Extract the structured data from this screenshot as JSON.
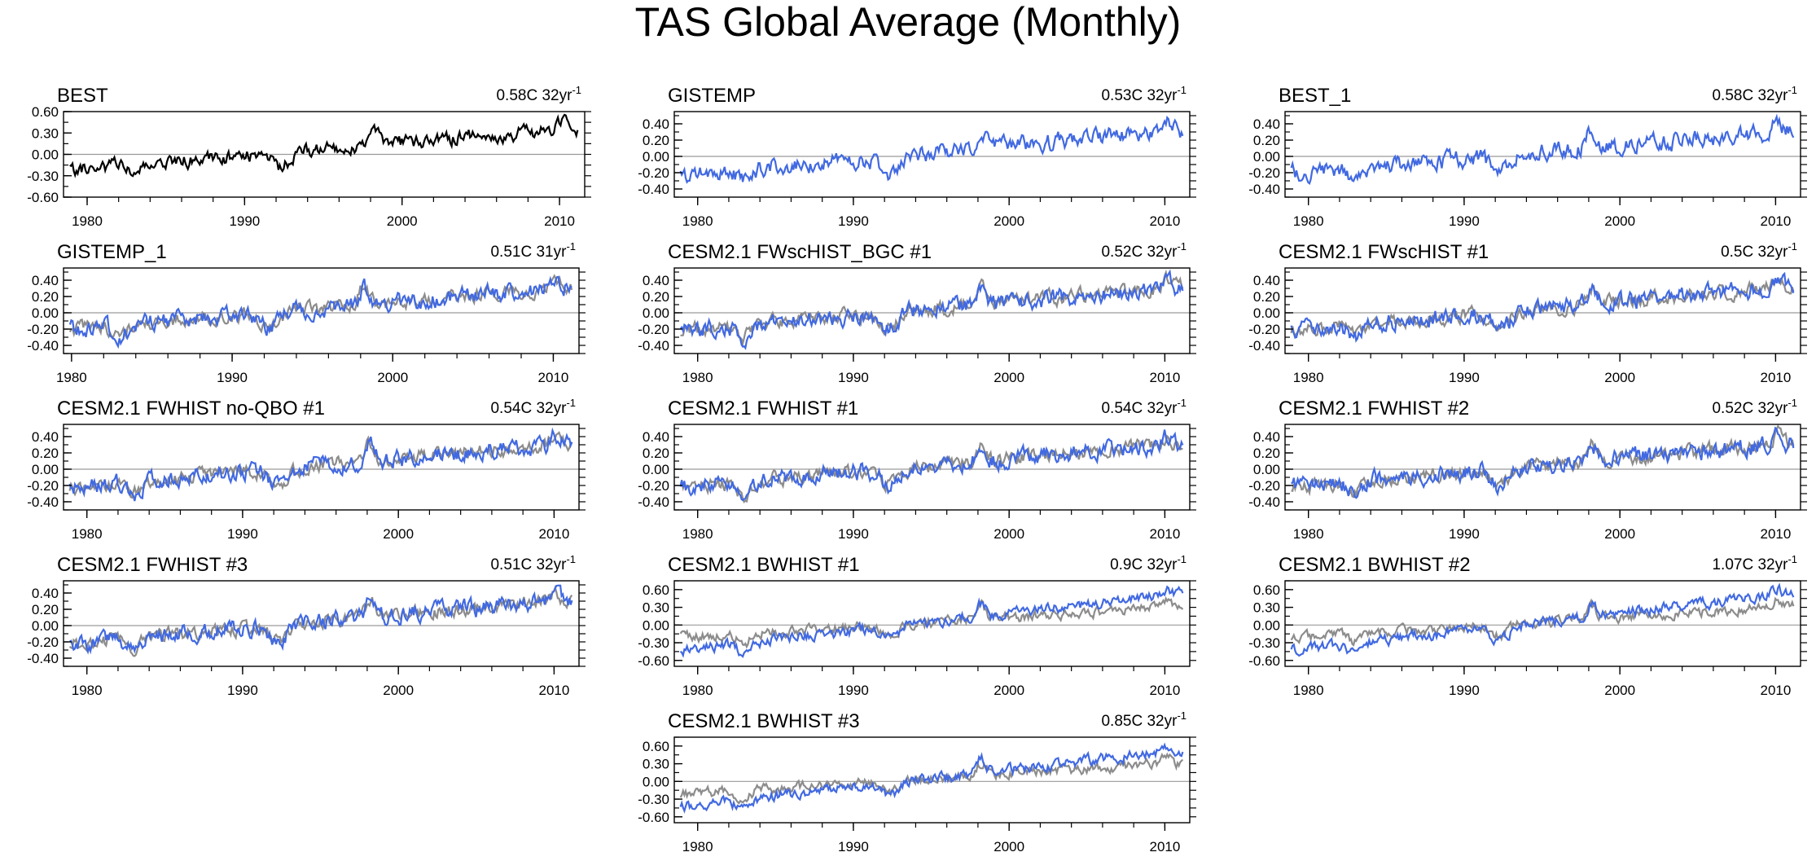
{
  "figure": {
    "title": "TAS Global Average (Monthly)"
  },
  "colors": {
    "obs": "#000000",
    "model": "#4169e1",
    "reference": "#8c8c8c",
    "zero_line": "#9a9a9a"
  },
  "chart_data": [
    {
      "type": "line",
      "title": "BEST",
      "trend": "0.58C 32yr",
      "trend_sup": "-1",
      "xlim": [
        1978.5,
        2011.6
      ],
      "ylim": [
        -0.6,
        0.6
      ],
      "yticks": [
        "0.60",
        "0.30",
        "0.00",
        "-0.30",
        "-0.60"
      ],
      "ytick_values": [
        0.6,
        0.3,
        0.0,
        -0.3,
        -0.6
      ],
      "xticks": [
        "1980",
        "1990",
        "2000",
        "2010"
      ],
      "xtick_values": [
        1980,
        1990,
        2000,
        2010
      ],
      "series_kind": "obs",
      "seed": 11
    },
    {
      "type": "line",
      "title": "GISTEMP",
      "trend": "0.53C 32yr",
      "trend_sup": "-1",
      "xlim": [
        1978.5,
        2011.6
      ],
      "ylim": [
        -0.5,
        0.55
      ],
      "yticks": [
        "0.40",
        "0.20",
        "0.00",
        "-0.20",
        "-0.40"
      ],
      "ytick_values": [
        0.4,
        0.2,
        0.0,
        -0.2,
        -0.4
      ],
      "xticks": [
        "1980",
        "1990",
        "2000",
        "2010"
      ],
      "xtick_values": [
        1980,
        1990,
        2000,
        2010
      ],
      "series_kind": "model",
      "seed": 23
    },
    {
      "type": "line",
      "title": "BEST_1",
      "trend": "0.58C 32yr",
      "trend_sup": "-1",
      "xlim": [
        1978.5,
        2011.6
      ],
      "ylim": [
        -0.5,
        0.55
      ],
      "yticks": [
        "0.40",
        "0.20",
        "0.00",
        "-0.20",
        "-0.40"
      ],
      "ytick_values": [
        0.4,
        0.2,
        0.0,
        -0.2,
        -0.4
      ],
      "xticks": [
        "1980",
        "1990",
        "2000",
        "2010"
      ],
      "xtick_values": [
        1980,
        1990,
        2000,
        2010
      ],
      "series_kind": "model",
      "seed": 37
    },
    {
      "type": "line",
      "title": "GISTEMP_1",
      "trend": "0.51C 31yr",
      "trend_sup": "-1",
      "xlim": [
        1979.5,
        2011.6
      ],
      "ylim": [
        -0.5,
        0.55
      ],
      "yticks": [
        "0.40",
        "0.20",
        "0.00",
        "-0.20",
        "-0.40"
      ],
      "ytick_values": [
        0.4,
        0.2,
        0.0,
        -0.2,
        -0.4
      ],
      "xticks": [
        "1980",
        "1990",
        "2000",
        "2010"
      ],
      "xtick_values": [
        1980,
        1990,
        2000,
        2010
      ],
      "series_kind": "model_ref",
      "seed": 41
    },
    {
      "type": "line",
      "title": "CESM2.1 FWscHIST_BGC #1",
      "trend": "0.52C 32yr",
      "trend_sup": "-1",
      "xlim": [
        1978.5,
        2011.6
      ],
      "ylim": [
        -0.5,
        0.55
      ],
      "yticks": [
        "0.40",
        "0.20",
        "0.00",
        "-0.20",
        "-0.40"
      ],
      "ytick_values": [
        0.4,
        0.2,
        0.0,
        -0.2,
        -0.4
      ],
      "xticks": [
        "1980",
        "1990",
        "2000",
        "2010"
      ],
      "xtick_values": [
        1980,
        1990,
        2000,
        2010
      ],
      "series_kind": "model_ref",
      "seed": 53
    },
    {
      "type": "line",
      "title": "CESM2.1 FWscHIST #1",
      "trend": "0.5C 32yr",
      "trend_sup": "-1",
      "xlim": [
        1978.5,
        2011.6
      ],
      "ylim": [
        -0.5,
        0.55
      ],
      "yticks": [
        "0.40",
        "0.20",
        "0.00",
        "-0.20",
        "-0.40"
      ],
      "ytick_values": [
        0.4,
        0.2,
        0.0,
        -0.2,
        -0.4
      ],
      "xticks": [
        "1980",
        "1990",
        "2000",
        "2010"
      ],
      "xtick_values": [
        1980,
        1990,
        2000,
        2010
      ],
      "series_kind": "model_ref",
      "seed": 67
    },
    {
      "type": "line",
      "title": "CESM2.1 FWHIST no-QBO #1",
      "trend": "0.54C 32yr",
      "trend_sup": "-1",
      "xlim": [
        1978.5,
        2011.6
      ],
      "ylim": [
        -0.5,
        0.55
      ],
      "yticks": [
        "0.40",
        "0.20",
        "0.00",
        "-0.20",
        "-0.40"
      ],
      "ytick_values": [
        0.4,
        0.2,
        0.0,
        -0.2,
        -0.4
      ],
      "xticks": [
        "1980",
        "1990",
        "2000",
        "2010"
      ],
      "xtick_values": [
        1980,
        1990,
        2000,
        2010
      ],
      "series_kind": "model_ref",
      "seed": 71
    },
    {
      "type": "line",
      "title": "CESM2.1 FWHIST #1",
      "trend": "0.54C 32yr",
      "trend_sup": "-1",
      "xlim": [
        1978.5,
        2011.6
      ],
      "ylim": [
        -0.5,
        0.55
      ],
      "yticks": [
        "0.40",
        "0.20",
        "0.00",
        "-0.20",
        "-0.40"
      ],
      "ytick_values": [
        0.4,
        0.2,
        0.0,
        -0.2,
        -0.4
      ],
      "xticks": [
        "1980",
        "1990",
        "2000",
        "2010"
      ],
      "xtick_values": [
        1980,
        1990,
        2000,
        2010
      ],
      "series_kind": "model_ref",
      "seed": 83
    },
    {
      "type": "line",
      "title": "CESM2.1 FWHIST #2",
      "trend": "0.52C 32yr",
      "trend_sup": "-1",
      "xlim": [
        1978.5,
        2011.6
      ],
      "ylim": [
        -0.5,
        0.55
      ],
      "yticks": [
        "0.40",
        "0.20",
        "0.00",
        "-0.20",
        "-0.40"
      ],
      "ytick_values": [
        0.4,
        0.2,
        0.0,
        -0.2,
        -0.4
      ],
      "xticks": [
        "1980",
        "1990",
        "2000",
        "2010"
      ],
      "xtick_values": [
        1980,
        1990,
        2000,
        2010
      ],
      "series_kind": "model_ref",
      "seed": 97
    },
    {
      "type": "line",
      "title": "CESM2.1 FWHIST #3",
      "trend": "0.51C 32yr",
      "trend_sup": "-1",
      "xlim": [
        1978.5,
        2011.6
      ],
      "ylim": [
        -0.5,
        0.55
      ],
      "yticks": [
        "0.40",
        "0.20",
        "0.00",
        "-0.20",
        "-0.40"
      ],
      "ytick_values": [
        0.4,
        0.2,
        0.0,
        -0.2,
        -0.4
      ],
      "xticks": [
        "1980",
        "1990",
        "2000",
        "2010"
      ],
      "xtick_values": [
        1980,
        1990,
        2000,
        2010
      ],
      "series_kind": "model_ref",
      "seed": 101
    },
    {
      "type": "line",
      "title": "CESM2.1 BWHIST #1",
      "trend": "0.9C 32yr",
      "trend_sup": "-1",
      "xlim": [
        1978.5,
        2011.6
      ],
      "ylim": [
        -0.7,
        0.75
      ],
      "yticks": [
        "0.60",
        "0.30",
        "0.00",
        "-0.30",
        "-0.60"
      ],
      "ytick_values": [
        0.6,
        0.3,
        0.0,
        -0.3,
        -0.6
      ],
      "xticks": [
        "1980",
        "1990",
        "2000",
        "2010"
      ],
      "xtick_values": [
        1980,
        1990,
        2000,
        2010
      ],
      "series_kind": "model_ref_strong",
      "seed": 113
    },
    {
      "type": "line",
      "title": "CESM2.1 BWHIST #2",
      "trend": "1.07C 32yr",
      "trend_sup": "-1",
      "xlim": [
        1978.5,
        2011.6
      ],
      "ylim": [
        -0.7,
        0.75
      ],
      "yticks": [
        "0.60",
        "0.30",
        "0.00",
        "-0.30",
        "-0.60"
      ],
      "ytick_values": [
        0.6,
        0.3,
        0.0,
        -0.3,
        -0.6
      ],
      "xticks": [
        "1980",
        "1990",
        "2000",
        "2010"
      ],
      "xtick_values": [
        1980,
        1990,
        2000,
        2010
      ],
      "series_kind": "model_ref_strong",
      "seed": 127
    },
    {
      "type": "line",
      "title": "CESM2.1 BWHIST #3",
      "trend": "0.85C 32yr",
      "trend_sup": "-1",
      "xlim": [
        1978.5,
        2011.6
      ],
      "ylim": [
        -0.7,
        0.75
      ],
      "yticks": [
        "0.60",
        "0.30",
        "0.00",
        "-0.30",
        "-0.60"
      ],
      "ytick_values": [
        0.6,
        0.3,
        0.0,
        -0.3,
        -0.6
      ],
      "xticks": [
        "1980",
        "1990",
        "2000",
        "2010"
      ],
      "xtick_values": [
        1980,
        1990,
        2000,
        2010
      ],
      "series_kind": "model_ref_strong",
      "seed": 131
    }
  ]
}
